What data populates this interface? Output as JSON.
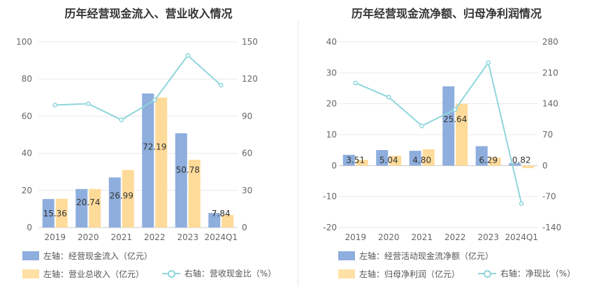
{
  "charts": [
    {
      "title": "历年经营现金流入、营业收入情况",
      "legend": [
        {
          "label": "左轴：经营现金流入（亿元）",
          "color": "#8eaedd",
          "kind": "bar"
        },
        {
          "label": "左轴：营业总收入（亿元）",
          "color": "#ffe1a6",
          "kind": "bar"
        },
        {
          "label": "右轴：营收现金比（%）",
          "color": "#8fd6db",
          "kind": "line"
        }
      ]
    },
    {
      "title": "历年经营现金流净额、归母净利润情况",
      "legend": [
        {
          "label": "左轴：经营活动现金流净额（亿元）",
          "color": "#8eaedd",
          "kind": "bar"
        },
        {
          "label": "左轴：归母净利润（亿元）",
          "color": "#ffe1a6",
          "kind": "bar"
        },
        {
          "label": "右轴：净现比（%）",
          "color": "#8fd6db",
          "kind": "line"
        }
      ]
    }
  ],
  "chart_data": [
    {
      "type": "bar",
      "title": "历年经营现金流入、营业收入情况",
      "categories": [
        "2019",
        "2020",
        "2021",
        "2022",
        "2023",
        "2024Q1"
      ],
      "left_axis": {
        "min": 0,
        "max": 100,
        "ticks": [
          0,
          20,
          40,
          60,
          80,
          100
        ]
      },
      "right_axis": {
        "min": 0,
        "max": 150,
        "ticks": [
          0,
          30,
          60,
          90,
          120,
          150
        ]
      },
      "series": [
        {
          "name": "经营现金流入（亿元）",
          "axis": "left",
          "type": "bar",
          "color": "#8eaedd",
          "values": [
            15.36,
            20.74,
            26.99,
            72.19,
            50.78,
            7.84
          ],
          "labels": [
            "15.36",
            "20.74",
            "26.99",
            "72.19",
            "50.78",
            "7.84"
          ]
        },
        {
          "name": "营业总收入（亿元）",
          "axis": "left",
          "type": "bar",
          "color": "#ffdb9a",
          "values": [
            15.5,
            20.8,
            31.0,
            70.0,
            36.5,
            6.8
          ]
        },
        {
          "name": "营收现金比（%）",
          "axis": "right",
          "type": "line",
          "color": "#8fd6db",
          "values": [
            99,
            100,
            87,
            103,
            139,
            115
          ]
        }
      ],
      "grid": true,
      "legend_position": "bottom"
    },
    {
      "type": "bar",
      "title": "历年经营现金流净额、归母净利润情况",
      "categories": [
        "2019",
        "2020",
        "2021",
        "2022",
        "2023",
        "2024Q1"
      ],
      "left_axis": {
        "min": -20,
        "max": 40,
        "ticks": [
          -20,
          -10,
          0,
          10,
          20,
          30,
          40
        ]
      },
      "right_axis": {
        "min": -140,
        "max": 280,
        "ticks": [
          -140,
          -70,
          0,
          70,
          140,
          210,
          280
        ]
      },
      "series": [
        {
          "name": "经营活动现金流净额（亿元）",
          "axis": "left",
          "type": "bar",
          "color": "#8eaedd",
          "values": [
            3.51,
            5.04,
            4.8,
            25.64,
            6.29,
            0.82
          ],
          "labels": [
            "3.51",
            "5.04",
            "4.80",
            "25.64",
            "6.29",
            "0.82"
          ]
        },
        {
          "name": "归母净利润（亿元）",
          "axis": "left",
          "type": "bar",
          "color": "#ffdb9a",
          "values": [
            1.9,
            3.2,
            5.3,
            20.0,
            2.6,
            -0.8
          ]
        },
        {
          "name": "净现比（%）",
          "axis": "right",
          "type": "line",
          "color": "#8fd6db",
          "values": [
            187,
            155,
            90,
            127,
            233,
            -86
          ]
        }
      ],
      "grid": true,
      "legend_position": "bottom"
    }
  ]
}
